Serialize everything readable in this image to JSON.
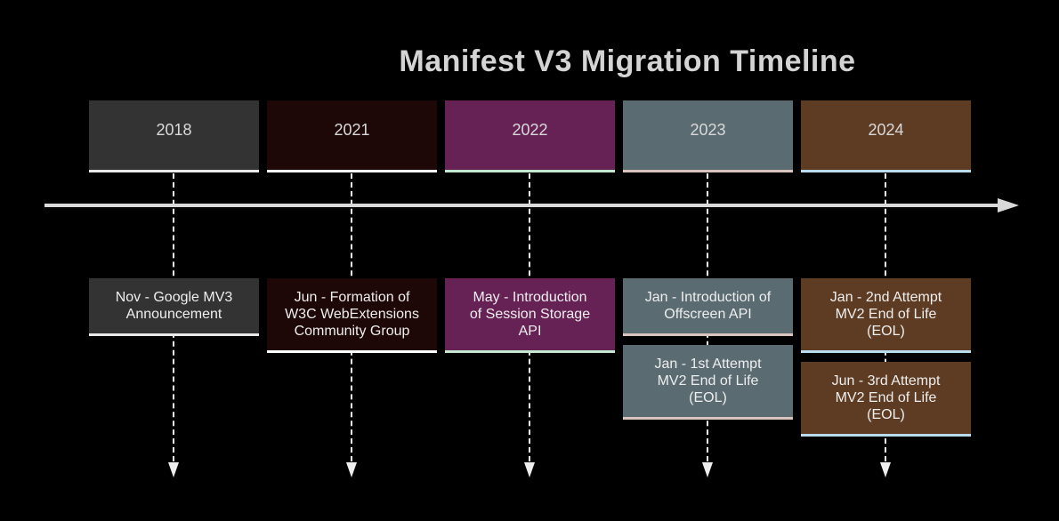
{
  "title": "Manifest V3 Migration Timeline",
  "colors": {
    "background": "#000000",
    "title_text": "#d4d4d4",
    "year_text": "#d9d9d9",
    "event_text": "#eeeeee",
    "axis": "#d9d9d9",
    "connector": "#ededed"
  },
  "sections": [
    {
      "year": "2018",
      "fill": "#333333",
      "accent": "#e8e8e8",
      "events": [
        {
          "text": "Nov - Google MV3\nAnnouncement"
        }
      ]
    },
    {
      "year": "2021",
      "fill": "#1e0707",
      "accent": "#ffffff",
      "events": [
        {
          "text": "Jun - Formation of\nW3C WebExtensions\nCommunity Group"
        }
      ]
    },
    {
      "year": "2022",
      "fill": "#662155",
      "accent": "#c3e8cf",
      "events": [
        {
          "text": "May - Introduction\nof Session Storage\nAPI"
        }
      ]
    },
    {
      "year": "2023",
      "fill": "#5a6b72",
      "accent": "#d9c4c0",
      "events": [
        {
          "text": "Jan - Introduction of\nOffscreen API"
        },
        {
          "text": "Jan - 1st Attempt\nMV2 End of Life\n(EOL)"
        }
      ]
    },
    {
      "year": "2024",
      "fill": "#5e3c23",
      "accent": "#badcef",
      "events": [
        {
          "text": "Jan - 2nd Attempt\nMV2 End of Life\n(EOL)"
        },
        {
          "text": "Jun - 3rd Attempt\nMV2 End of Life\n(EOL)"
        }
      ]
    }
  ]
}
